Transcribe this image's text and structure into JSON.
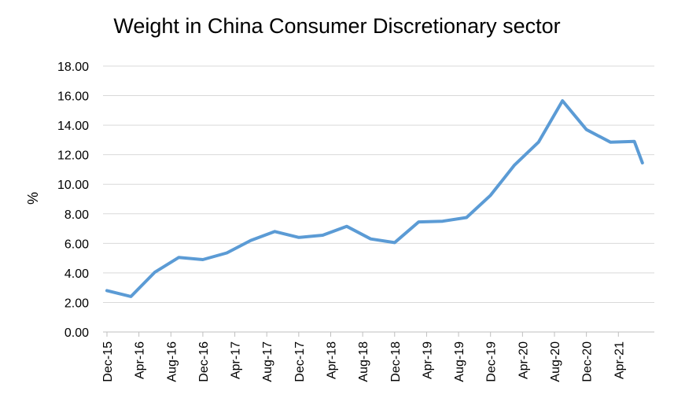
{
  "chart_data": {
    "type": "line",
    "title": "Weight in China Consumer Discretionary sector",
    "ylabel": "%",
    "xlabel": "",
    "ylim": [
      0,
      18
    ],
    "yticks": [
      "0.00",
      "2.00",
      "4.00",
      "6.00",
      "8.00",
      "10.00",
      "12.00",
      "14.00",
      "16.00",
      "18.00"
    ],
    "x_ticks": [
      "Dec-15",
      "Apr-16",
      "Aug-16",
      "Dec-16",
      "Apr-17",
      "Aug-17",
      "Dec-17",
      "Apr-18",
      "Aug-18",
      "Dec-18",
      "Apr-19",
      "Aug-19",
      "Dec-19",
      "Apr-20",
      "Aug-20",
      "Dec-20",
      "Apr-21"
    ],
    "grid": true,
    "legend": "none",
    "color": "#5B9BD5",
    "series": [
      {
        "x": [
          "Dec-15",
          "Mar-16",
          "Jun-16",
          "Sep-16",
          "Dec-16",
          "Mar-17",
          "Jun-17",
          "Sep-17",
          "Dec-17",
          "Mar-18",
          "Jun-18",
          "Sep-18",
          "Dec-18",
          "Mar-19",
          "Jun-19",
          "Sep-19",
          "Dec-19",
          "Mar-20",
          "Jun-20",
          "Sep-20",
          "Dec-20",
          "Mar-21",
          "Jun-21",
          "Jul-21"
        ],
        "values": [
          2.8,
          2.4,
          4.05,
          5.05,
          4.9,
          5.35,
          6.2,
          6.8,
          6.4,
          6.55,
          7.15,
          6.3,
          6.05,
          7.45,
          7.5,
          7.75,
          9.25,
          11.3,
          12.85,
          15.65,
          13.7,
          12.85,
          12.9,
          11.45
        ]
      }
    ]
  }
}
